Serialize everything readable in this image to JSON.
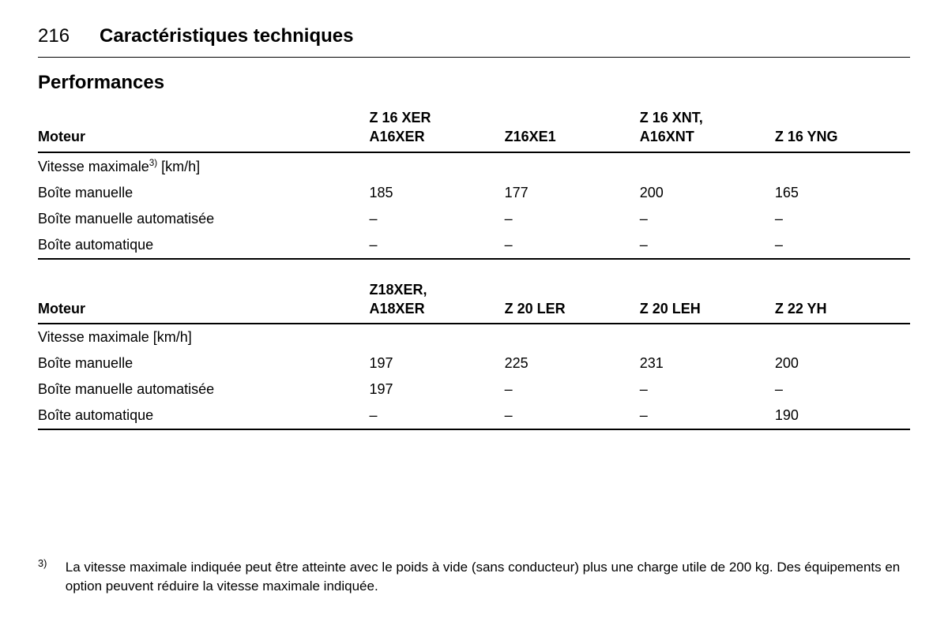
{
  "page": {
    "number": "216",
    "title": "Caractéristiques techniques"
  },
  "section": {
    "title": "Performances"
  },
  "table1": {
    "head": {
      "label": "Moteur",
      "cols": [
        "Z 16 XER\nA16XER",
        "Z16XE1",
        "Z 16 XNT,\nA16XNT",
        "Z 16 YNG"
      ]
    },
    "subhead_pre": "Vitesse maximale",
    "subhead_sup": "3)",
    "subhead_post": " [km/h]",
    "rows": [
      {
        "label": "Boîte manuelle",
        "c": [
          "185",
          "177",
          "200",
          "165"
        ]
      },
      {
        "label": "Boîte manuelle automatisée",
        "c": [
          "–",
          "–",
          "–",
          "–"
        ]
      },
      {
        "label": "Boîte automatique",
        "c": [
          "–",
          "–",
          "–",
          "–"
        ]
      }
    ]
  },
  "table2": {
    "head": {
      "label": "Moteur",
      "cols": [
        "Z18XER,\nA18XER",
        "Z 20 LER",
        "Z 20 LEH",
        "Z 22 YH"
      ]
    },
    "subhead": "Vitesse maximale [km/h]",
    "rows": [
      {
        "label": "Boîte manuelle",
        "c": [
          "197",
          "225",
          "231",
          "200"
        ]
      },
      {
        "label": "Boîte manuelle automatisée",
        "c": [
          "197",
          "–",
          "–",
          "–"
        ]
      },
      {
        "label": "Boîte automatique",
        "c": [
          "–",
          "–",
          "–",
          "190"
        ]
      }
    ]
  },
  "footnote": {
    "marker": "3)",
    "text": "La vitesse maximale indiquée peut être atteinte avec le poids à vide (sans conducteur) plus une charge utile de 200 kg. Des équipements en option peuvent réduire la vitesse maximale indiquée."
  }
}
